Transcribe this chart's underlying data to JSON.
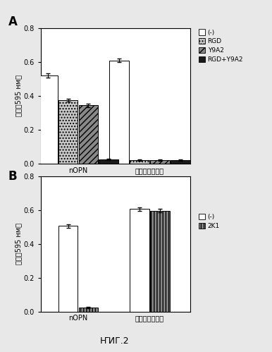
{
  "panel_A": {
    "groups": [
      "nOPN",
      "ビトロネクチン"
    ],
    "series": [
      {
        "label": "(-)",
        "color": "white",
        "hatch": "",
        "values": [
          0.52,
          0.61
        ],
        "errors": [
          0.013,
          0.01
        ]
      },
      {
        "label": "RGD",
        "color": "#c8c8c8",
        "hatch": "....",
        "values": [
          0.375,
          0.022
        ],
        "errors": [
          0.01,
          0.004
        ]
      },
      {
        "label": "Y9A2",
        "color": "#888888",
        "hatch": "////",
        "values": [
          0.345,
          0.022
        ],
        "errors": [
          0.01,
          0.004
        ]
      },
      {
        "label": "RGD+Y9A2",
        "color": "#1a1a1a",
        "hatch": "",
        "values": [
          0.025,
          0.022
        ],
        "errors": [
          0.004,
          0.004
        ]
      }
    ],
    "ylabel": "吸収（595 нм）",
    "ylim": [
      0,
      0.8
    ],
    "yticks": [
      0,
      0.2,
      0.4,
      0.6,
      0.8
    ],
    "panel_label": "A"
  },
  "panel_B": {
    "groups": [
      "nOPN",
      "ビトロネクチン"
    ],
    "series": [
      {
        "label": "(-)",
        "color": "white",
        "hatch": "",
        "values": [
          0.505,
          0.605
        ],
        "errors": [
          0.01,
          0.01
        ]
      },
      {
        "label": "2K1",
        "color": "#888888",
        "hatch": "||||",
        "values": [
          0.025,
          0.595
        ],
        "errors": [
          0.004,
          0.01
        ]
      }
    ],
    "ylabel": "吸収（595 нм）",
    "ylim": [
      0,
      0.8
    ],
    "yticks": [
      0,
      0.2,
      0.4,
      0.6,
      0.8
    ],
    "panel_label": "B"
  },
  "figure_label": "ҤИГ.2",
  "background_color": "#e8e8e8",
  "bar_width": 0.12,
  "ylabel_A": "吸収（595 нм）",
  "ylabel_B": "吸収（595 нм）"
}
